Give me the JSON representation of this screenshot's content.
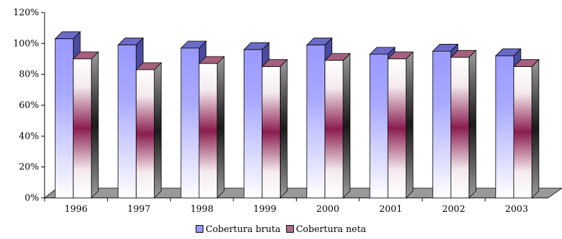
{
  "chart_data": {
    "type": "bar",
    "categories": [
      "1996",
      "1997",
      "1998",
      "1999",
      "2000",
      "2001",
      "2002",
      "2003"
    ],
    "series": [
      {
        "name": "Cobertura bruta",
        "values": [
          103,
          99,
          97,
          96,
          99,
          93,
          95,
          92
        ]
      },
      {
        "name": "Cobertura neta",
        "values": [
          90,
          83,
          87,
          85,
          89,
          90,
          91,
          85
        ]
      }
    ],
    "ylim": [
      0,
      120
    ],
    "yticks": [
      "0%",
      "20%",
      "40%",
      "60%",
      "80%",
      "100%",
      "120%"
    ],
    "legend_position": "bottom",
    "grid": false,
    "colors": {
      "bruta": "#9999ff",
      "bruta_side": "#4a4a9e",
      "neta_dark": "#8a1d4f",
      "floor": "#999999"
    }
  }
}
